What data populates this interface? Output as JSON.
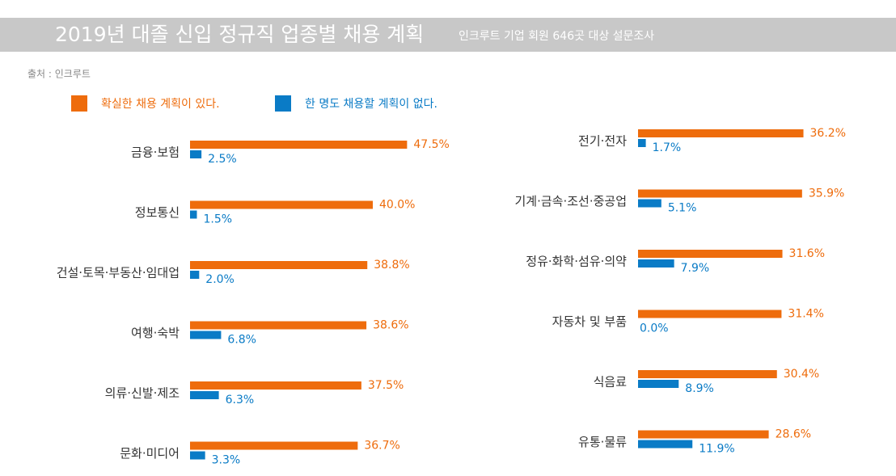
{
  "chart_data": {
    "type": "barh",
    "title": "2019년 대졸 신입 정규직 업종별 채용 계획",
    "subtitle": "인크루트 기업 회원 646곳 대상 설문조사",
    "source": "출처 : 인크루트",
    "categories": [
      "금융·보험",
      "정보통신",
      "건설·토목·부동산·임대업",
      "여행·숙박",
      "의류·신발·제조",
      "문화·미디어",
      "전기·전자",
      "기계·금속·조선·중공업",
      "정유·화학·섬유·의약",
      "자동차 및 부품",
      "식음료",
      "유통·물류"
    ],
    "series": [
      {
        "name": "확실한 채용 계획이 있다.",
        "color": "#ee6c0c",
        "values": [
          47.5,
          40.0,
          38.8,
          38.6,
          37.5,
          36.7,
          36.2,
          35.9,
          31.6,
          31.4,
          30.4,
          28.6
        ],
        "value_labels": [
          "47.5%",
          "40.0%",
          "38.8%",
          "38.6%",
          "37.5%",
          "36.7%",
          "36.2%",
          "35.9%",
          "31.6%",
          "31.4%",
          "30.4%",
          "28.6%"
        ]
      },
      {
        "name": "한 명도 채용할 계획이 없다.",
        "color": "#0a7bc6",
        "values": [
          2.5,
          1.5,
          2.0,
          6.8,
          6.3,
          3.3,
          1.7,
          5.1,
          7.9,
          0.0,
          8.9,
          11.9
        ],
        "value_labels": [
          "2.5%",
          "1.5%",
          "2.0%",
          "6.8%",
          "6.3%",
          "3.3%",
          "1.7%",
          "5.1%",
          "7.9%",
          "0.0%",
          "8.9%",
          "11.9%"
        ]
      }
    ]
  }
}
